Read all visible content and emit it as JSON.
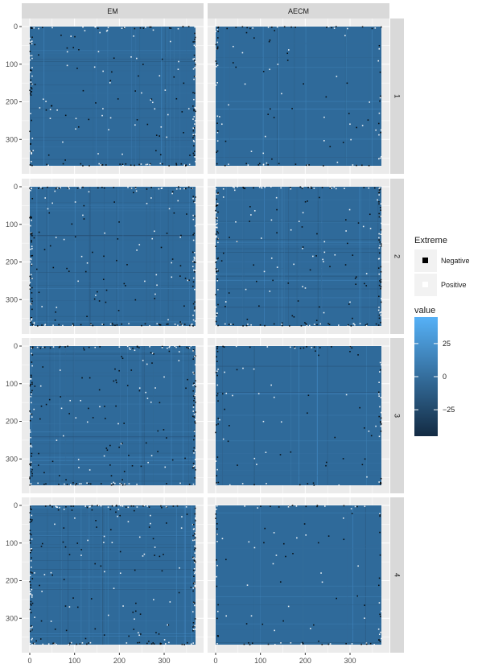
{
  "chart_data": {
    "type": "heatmap",
    "title": "",
    "xlabel": "",
    "ylabel": "",
    "x_range": [
      0,
      370
    ],
    "y_range": [
      0,
      370
    ],
    "y_reversed": true,
    "x_ticks": [
      0,
      100,
      200,
      300
    ],
    "y_ticks": [
      0,
      100,
      200,
      300
    ],
    "facet_columns": [
      "EM",
      "AECM"
    ],
    "facet_rows": [
      "1",
      "2",
      "3",
      "4"
    ],
    "base_fill": "#2F6A9A",
    "color_scale": {
      "name": "value",
      "low": "#132B43",
      "high": "#56B1F7",
      "limits": [
        -45,
        45
      ],
      "breaks": [
        25,
        0,
        -25
      ]
    },
    "extreme_legend": {
      "name": "Extreme",
      "items": [
        {
          "label": "Negative",
          "color": "#000000"
        },
        {
          "label": "Positive",
          "color": "#ffffff"
        }
      ]
    },
    "panel_density": [
      [
        0.9,
        0.5
      ],
      [
        1.0,
        1.0
      ],
      [
        1.0,
        0.45
      ],
      [
        1.1,
        0.45
      ]
    ],
    "legend_position": "right",
    "grid": true
  }
}
